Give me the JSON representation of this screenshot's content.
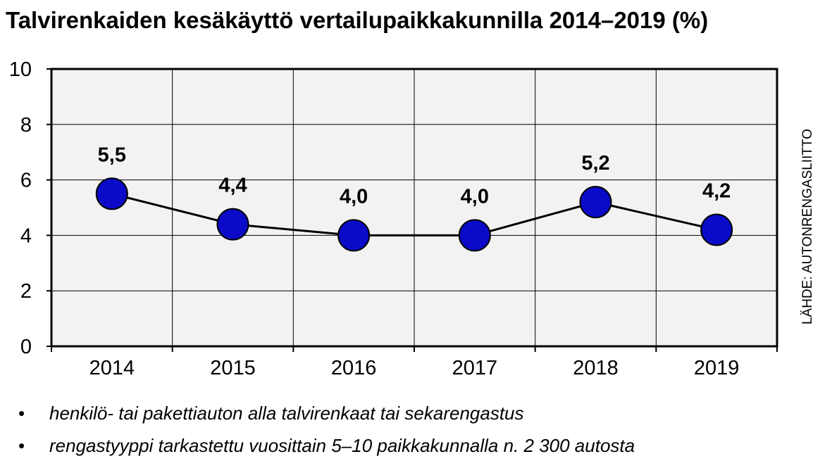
{
  "title": "Talvirenkaiden kesäkäyttö vertailupaikkakunnilla 2014–2019 (%)",
  "source": "LÄHDE: AUTONRENGASLIITTO",
  "notes": [
    "henkilö- tai pakettiauton alla talvirenkaat tai sekarengastus",
    "rengastyyppi tarkastettu vuosittain 5–10 paikkakunnalla n. 2 300 autosta"
  ],
  "colors": {
    "marker_fill": "#0a0ac8",
    "marker_stroke": "#000000",
    "line": "#000000",
    "plot_bg": "#f2f2f2",
    "grid": "#000000"
  },
  "chart_data": {
    "type": "line",
    "title": "Talvirenkaiden kesäkäyttö vertailupaikkakunnilla 2014–2019 (%)",
    "categories": [
      "2014",
      "2015",
      "2016",
      "2017",
      "2018",
      "2019"
    ],
    "values": [
      5.5,
      4.4,
      4.0,
      4.0,
      5.2,
      4.2
    ],
    "data_labels": [
      "5,5",
      "4,4",
      "4,0",
      "4,0",
      "5,2",
      "4,2"
    ],
    "ylim": [
      0,
      10
    ],
    "yticks": [
      0,
      2,
      4,
      6,
      8,
      10
    ],
    "ytick_labels": [
      "0",
      "2",
      "4",
      "6",
      "8",
      "10"
    ],
    "xlabel": "",
    "ylabel": "",
    "grid": true,
    "legend": false
  }
}
